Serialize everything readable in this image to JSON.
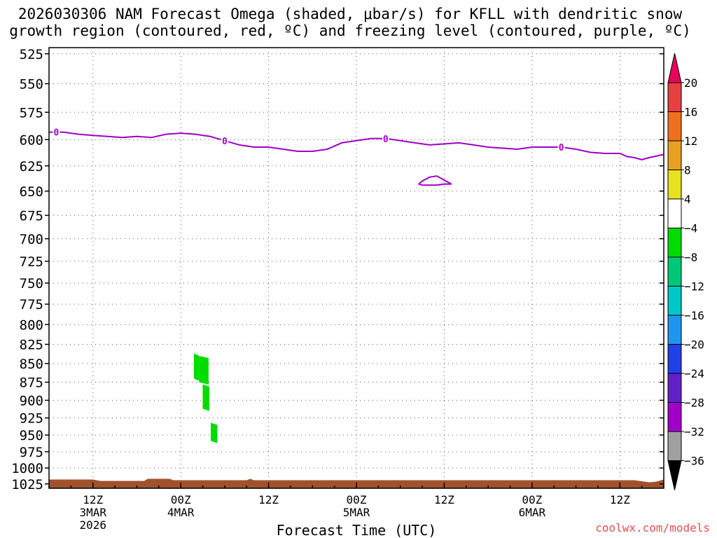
{
  "title": {
    "line1": "2026030306 NAM Forecast Omega (shaded, μbar/s) for KFLL with dendritic snow",
    "line2": "growth region (contoured, red, ºC) and freezing level (contoured, purple, ºC)"
  },
  "watermark": "coolwx.com/models",
  "chart_data": {
    "type": "heatmap",
    "title": "2026030306 NAM Forecast Omega (shaded, μbar/s) for KFLL with dendritic snow growth region (contoured, red, ºC) and freezing level (contoured, purple, ºC)",
    "xlabel": "Forecast Time (UTC)",
    "ylabel": "",
    "x_range_hours_from_init": [
      0,
      84
    ],
    "y_pressure_levels": [
      525,
      550,
      575,
      600,
      625,
      650,
      675,
      700,
      725,
      750,
      775,
      800,
      825,
      850,
      875,
      900,
      925,
      950,
      975,
      1000,
      1025
    ],
    "ylim": [
      525,
      1025
    ],
    "y_inverted": true,
    "grid": true,
    "x_ticks": [
      {
        "hour": 6,
        "lines": [
          "12Z",
          "3MAR",
          "2026"
        ]
      },
      {
        "hour": 18,
        "lines": [
          "00Z",
          "4MAR"
        ]
      },
      {
        "hour": 30,
        "lines": [
          "12Z"
        ]
      },
      {
        "hour": 42,
        "lines": [
          "00Z",
          "5MAR"
        ]
      },
      {
        "hour": 54,
        "lines": [
          "12Z"
        ]
      },
      {
        "hour": 66,
        "lines": [
          "00Z",
          "6MAR"
        ]
      },
      {
        "hour": 78,
        "lines": [
          "12Z"
        ]
      }
    ],
    "freezing_level": {
      "color": "#a000c8",
      "contour_label": "0",
      "points": [
        [
          0,
          593
        ],
        [
          2,
          593
        ],
        [
          4,
          595
        ],
        [
          6,
          596
        ],
        [
          8,
          597
        ],
        [
          10,
          598
        ],
        [
          12,
          597
        ],
        [
          14,
          598
        ],
        [
          16,
          595
        ],
        [
          18,
          594
        ],
        [
          20,
          595
        ],
        [
          22,
          597
        ],
        [
          24,
          601
        ],
        [
          26,
          605
        ],
        [
          28,
          607
        ],
        [
          30,
          607
        ],
        [
          32,
          609
        ],
        [
          34,
          611
        ],
        [
          36,
          611
        ],
        [
          38,
          609
        ],
        [
          40,
          603
        ],
        [
          42,
          601
        ],
        [
          44,
          599
        ],
        [
          46,
          599
        ],
        [
          48,
          601
        ],
        [
          50,
          603
        ],
        [
          52,
          605
        ],
        [
          54,
          604
        ],
        [
          56,
          603
        ],
        [
          58,
          605
        ],
        [
          60,
          607
        ],
        [
          62,
          608
        ],
        [
          64,
          609
        ],
        [
          66,
          607
        ],
        [
          68,
          607
        ],
        [
          70,
          607
        ],
        [
          72,
          609
        ],
        [
          74,
          612
        ],
        [
          76,
          613
        ],
        [
          78,
          613
        ],
        [
          79,
          616
        ],
        [
          80,
          617
        ],
        [
          81,
          619
        ],
        [
          82,
          617
        ],
        [
          84,
          614
        ]
      ],
      "label_hours": [
        1,
        24,
        46,
        70
      ],
      "closed_contour": [
        [
          50.5,
          643
        ],
        [
          51,
          640
        ],
        [
          52,
          636
        ],
        [
          53,
          635
        ],
        [
          54,
          639
        ],
        [
          55,
          643
        ],
        [
          54,
          643
        ],
        [
          53,
          644
        ],
        [
          52,
          644
        ],
        [
          51,
          644
        ],
        [
          50.5,
          643
        ]
      ]
    },
    "omega_shaded": [
      {
        "hours": [
          19.8,
          20.5
        ],
        "p_top": 837,
        "p_bottom": 873,
        "value_range": [
          -8,
          -4
        ],
        "color": "#00dc00"
      },
      {
        "hours": [
          20.5,
          21.8
        ],
        "p_top": 840,
        "p_bottom": 878,
        "value_range": [
          -8,
          -4
        ],
        "color": "#00dc00"
      },
      {
        "hours": [
          21.0,
          21.9
        ],
        "p_top": 878,
        "p_bottom": 915,
        "value_range": [
          -8,
          -4
        ],
        "color": "#00dc00"
      },
      {
        "hours": [
          22.1,
          23.0
        ],
        "p_top": 932,
        "p_bottom": 962,
        "value_range": [
          -8,
          -4
        ],
        "color": "#00dc00"
      }
    ],
    "terrain": {
      "color": "#a0522d",
      "p_top": 1018
    },
    "colorbar": {
      "labels": [
        "20",
        "16",
        "12",
        "8",
        "4",
        "−4",
        "−8",
        "−12",
        "−16",
        "−20",
        "−24",
        "−28",
        "−32",
        "−36"
      ],
      "colors": [
        "#e8005a",
        "#e84040",
        "#f07020",
        "#e8a020",
        "#e8e020",
        "#ffffff",
        "#00dc00",
        "#00c878",
        "#00c8c8",
        "#1e96f0",
        "#2040e8",
        "#6420c8",
        "#a000c8",
        "#a0a0a0",
        "#000000"
      ]
    }
  }
}
